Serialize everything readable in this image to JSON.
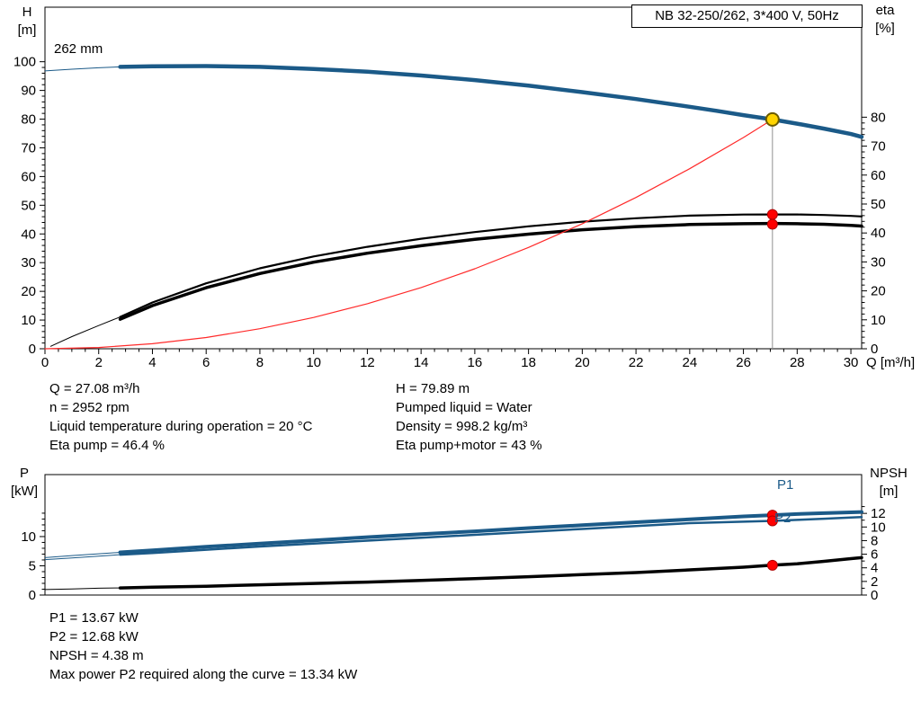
{
  "title_box": "NB 32-250/262, 3*400 V, 50Hz",
  "impeller_label": "262 mm",
  "colors": {
    "curve_blue": "#1b5a88",
    "curve_black": "#000000",
    "system_red": "#ff2a2a",
    "marker_red": "#ff0000",
    "marker_red_edge": "#b00000",
    "duty_yellow": "#ffd400",
    "duty_edge": "#6b5b00",
    "vline_gray": "#909090"
  },
  "operating_point": {
    "Q": 27.08,
    "H": 79.89,
    "eta_pump": 46.4,
    "eta_pump_motor": 43,
    "P1": 13.67,
    "P2": 12.68,
    "NPSH": 4.38
  },
  "info_top": {
    "left": [
      "Q = 27.08 m³/h",
      "n = 2952 rpm",
      "Liquid temperature during operation = 20 °C",
      "Eta pump = 46.4 %"
    ],
    "right": [
      "H = 79.89 m",
      "Pumped liquid = Water",
      "Density = 998.2 kg/m³",
      "Eta pump+motor = 43 %"
    ]
  },
  "info_bottom": [
    "P1 = 13.67 kW",
    "P2 = 12.68 kW",
    "NPSH = 4.38 m",
    "Max power P2 required along the curve = 13.34 kW"
  ],
  "chart_data": [
    {
      "id": "hq-chart",
      "type": "line",
      "title": "NB 32-250/262, 3*400 V, 50Hz",
      "x": {
        "name": "Q",
        "unit": "[m³/h]",
        "label": "Q [m³/h]",
        "min": 0,
        "max": 30.4,
        "major": 2,
        "minor": 0.5,
        "label_max": 30,
        "minor_max": 30
      },
      "y_left": {
        "name": "H",
        "unit": "[m]",
        "label": "H [m]",
        "min": 0,
        "max": 119,
        "major": 10,
        "minor": 2,
        "label_max": 100,
        "minor_max": 100
      },
      "y_right": {
        "name": "eta",
        "unit": "[%]",
        "label": "eta [%]",
        "min": 0,
        "max": 118,
        "major": 10,
        "minor": 2,
        "label_max": 80,
        "minor_max": 80
      },
      "series": [
        {
          "name": "head-curve-262mm",
          "axis": "left",
          "color": "#1b5a88",
          "width": 4.5,
          "thin_until": 2.8,
          "points": [
            [
              0,
              96.8
            ],
            [
              1,
              97.4
            ],
            [
              2,
              97.9
            ],
            [
              2.8,
              98.2
            ],
            [
              4,
              98.4
            ],
            [
              6,
              98.5
            ],
            [
              8,
              98.2
            ],
            [
              10,
              97.5
            ],
            [
              12,
              96.5
            ],
            [
              14,
              95.2
            ],
            [
              16,
              93.6
            ],
            [
              18,
              91.7
            ],
            [
              20,
              89.4
            ],
            [
              22,
              87.0
            ],
            [
              24,
              84.3
            ],
            [
              25,
              82.9
            ],
            [
              26,
              81.4
            ],
            [
              27.08,
              79.89
            ],
            [
              28,
              78.4
            ],
            [
              29,
              76.7
            ],
            [
              30,
              74.8
            ],
            [
              30.4,
              73.8
            ]
          ]
        },
        {
          "name": "eta-pump-curve",
          "axis": "right",
          "color": "#000000",
          "width": 2.2,
          "thin_until": 2.8,
          "points": [
            [
              0.2,
              0.8
            ],
            [
              1,
              4.2
            ],
            [
              2,
              8.0
            ],
            [
              2.8,
              11.0
            ],
            [
              4,
              16.0
            ],
            [
              6,
              22.6
            ],
            [
              8,
              27.8
            ],
            [
              10,
              31.9
            ],
            [
              12,
              35.2
            ],
            [
              14,
              38.0
            ],
            [
              16,
              40.3
            ],
            [
              18,
              42.3
            ],
            [
              20,
              43.9
            ],
            [
              22,
              45.1
            ],
            [
              24,
              46.0
            ],
            [
              26,
              46.35
            ],
            [
              27.08,
              46.4
            ],
            [
              28,
              46.4
            ],
            [
              29,
              46.2
            ],
            [
              30,
              45.9
            ],
            [
              30.4,
              45.7
            ]
          ]
        },
        {
          "name": "eta-pump-motor-curve",
          "axis": "right",
          "color": "#000000",
          "width": 3.5,
          "points": [
            [
              2.8,
              10.2
            ],
            [
              4,
              14.9
            ],
            [
              6,
              21.1
            ],
            [
              8,
              26.0
            ],
            [
              10,
              29.9
            ],
            [
              12,
              33.0
            ],
            [
              14,
              35.6
            ],
            [
              16,
              37.8
            ],
            [
              18,
              39.6
            ],
            [
              20,
              41.1
            ],
            [
              22,
              42.2
            ],
            [
              24,
              42.9
            ],
            [
              26,
              43.2
            ],
            [
              27.08,
              43.3
            ],
            [
              28,
              43.2
            ],
            [
              29,
              43.0
            ],
            [
              30,
              42.6
            ],
            [
              30.4,
              42.4
            ]
          ]
        },
        {
          "name": "system-curve",
          "axis": "left",
          "color": "#ff2a2a",
          "width": 1.2,
          "points": [
            [
              0,
              0
            ],
            [
              2,
              0.44
            ],
            [
              4,
              1.74
            ],
            [
              6,
              3.92
            ],
            [
              8,
              6.97
            ],
            [
              10,
              10.89
            ],
            [
              12,
              15.68
            ],
            [
              14,
              21.34
            ],
            [
              16,
              27.88
            ],
            [
              18,
              35.28
            ],
            [
              20,
              43.56
            ],
            [
              22,
              52.7
            ],
            [
              24,
              62.72
            ],
            [
              26,
              73.6
            ],
            [
              27.08,
              79.89
            ]
          ]
        }
      ],
      "markers": [
        {
          "type": "vline",
          "x": 27.08,
          "axis": "left",
          "from": 0,
          "to": 79.89,
          "color": "#909090",
          "width": 1,
          "name": "duty-flow-line"
        },
        {
          "type": "dot",
          "x": 27.08,
          "y": 46.4,
          "axis": "right",
          "fill": "#ff0000",
          "stroke": "#b00000",
          "sw": 1,
          "r": 5.5,
          "name": "eta-pump-point"
        },
        {
          "type": "dot",
          "x": 27.08,
          "y": 43.0,
          "axis": "right",
          "fill": "#ff0000",
          "stroke": "#b00000",
          "sw": 1,
          "r": 5.5,
          "name": "eta-pump-motor-point"
        },
        {
          "type": "dot",
          "x": 27.08,
          "y": 79.89,
          "axis": "left",
          "fill": "#ffd400",
          "stroke": "#6b5b00",
          "sw": 2,
          "r": 7,
          "name": "duty-point"
        }
      ]
    },
    {
      "id": "power-npsh-chart",
      "type": "line",
      "x": {
        "name": "Q",
        "unit": "[m³/h]",
        "label": "",
        "min": 0,
        "max": 30.4,
        "major": 0,
        "minor": 0
      },
      "y_left": {
        "name": "P",
        "unit": "[kW]",
        "label": "P [kW]",
        "min": 0,
        "max": 20.6,
        "major": 5,
        "minor": 1,
        "label_max": 10,
        "minor_max": 14
      },
      "y_right": {
        "name": "NPSH",
        "unit": "[m]",
        "label": "NPSH [m]",
        "min": 0,
        "max": 17.7,
        "major": 2,
        "minor": 1,
        "label_max": 12,
        "minor_max": 14
      },
      "curve_labels": {
        "p1": "P1",
        "p2": "P2"
      },
      "series": [
        {
          "name": "p1-curve",
          "axis": "left",
          "color": "#1b5a88",
          "width": 4,
          "thin_until": 2.8,
          "points": [
            [
              0,
              6.4
            ],
            [
              1,
              6.75
            ],
            [
              2,
              7.05
            ],
            [
              2.8,
              7.3
            ],
            [
              4,
              7.65
            ],
            [
              6,
              8.25
            ],
            [
              8,
              8.8
            ],
            [
              10,
              9.35
            ],
            [
              12,
              9.9
            ],
            [
              14,
              10.4
            ],
            [
              16,
              10.9
            ],
            [
              18,
              11.45
            ],
            [
              20,
              11.95
            ],
            [
              22,
              12.45
            ],
            [
              24,
              12.95
            ],
            [
              26,
              13.45
            ],
            [
              27.08,
              13.67
            ],
            [
              28,
              13.85
            ],
            [
              29,
              14.0
            ],
            [
              30,
              14.15
            ],
            [
              30.4,
              14.2
            ]
          ]
        },
        {
          "name": "p2-curve",
          "axis": "left",
          "color": "#1b5a88",
          "width": 2.5,
          "thin_until": 2.8,
          "points": [
            [
              0,
              6.05
            ],
            [
              1,
              6.35
            ],
            [
              2,
              6.65
            ],
            [
              2.8,
              6.9
            ],
            [
              4,
              7.2
            ],
            [
              6,
              7.75
            ],
            [
              8,
              8.3
            ],
            [
              10,
              8.8
            ],
            [
              12,
              9.3
            ],
            [
              14,
              9.8
            ],
            [
              16,
              10.3
            ],
            [
              18,
              10.8
            ],
            [
              20,
              11.3
            ],
            [
              22,
              11.8
            ],
            [
              24,
              12.3
            ],
            [
              26,
              12.55
            ],
            [
              27.08,
              12.68
            ],
            [
              28,
              12.85
            ],
            [
              29,
              13.05
            ],
            [
              30,
              13.25
            ],
            [
              30.4,
              13.34
            ]
          ]
        },
        {
          "name": "npsh-curve",
          "axis": "right",
          "color": "#000000",
          "width": 3.5,
          "thin_until": 2.8,
          "points": [
            [
              0,
              0.8
            ],
            [
              1,
              0.9
            ],
            [
              2,
              1.0
            ],
            [
              2.8,
              1.05
            ],
            [
              4,
              1.15
            ],
            [
              6,
              1.3
            ],
            [
              8,
              1.5
            ],
            [
              10,
              1.7
            ],
            [
              12,
              1.9
            ],
            [
              14,
              2.15
            ],
            [
              16,
              2.4
            ],
            [
              18,
              2.7
            ],
            [
              20,
              3.0
            ],
            [
              22,
              3.3
            ],
            [
              24,
              3.7
            ],
            [
              26,
              4.1
            ],
            [
              27.08,
              4.38
            ],
            [
              28,
              4.6
            ],
            [
              29,
              4.95
            ],
            [
              30,
              5.35
            ],
            [
              30.4,
              5.5
            ]
          ]
        }
      ],
      "markers": [
        {
          "type": "dot",
          "x": 27.08,
          "y": 13.67,
          "axis": "left",
          "fill": "#ff0000",
          "stroke": "#b00000",
          "sw": 1,
          "r": 5.5,
          "name": "p1-point"
        },
        {
          "type": "dot",
          "x": 27.08,
          "y": 12.68,
          "axis": "left",
          "fill": "#ff0000",
          "stroke": "#b00000",
          "sw": 1,
          "r": 5.5,
          "name": "p2-point"
        },
        {
          "type": "dot",
          "x": 27.08,
          "y": 4.38,
          "axis": "right",
          "fill": "#ff0000",
          "stroke": "#b00000",
          "sw": 1,
          "r": 5.5,
          "name": "npsh-point"
        }
      ]
    }
  ]
}
